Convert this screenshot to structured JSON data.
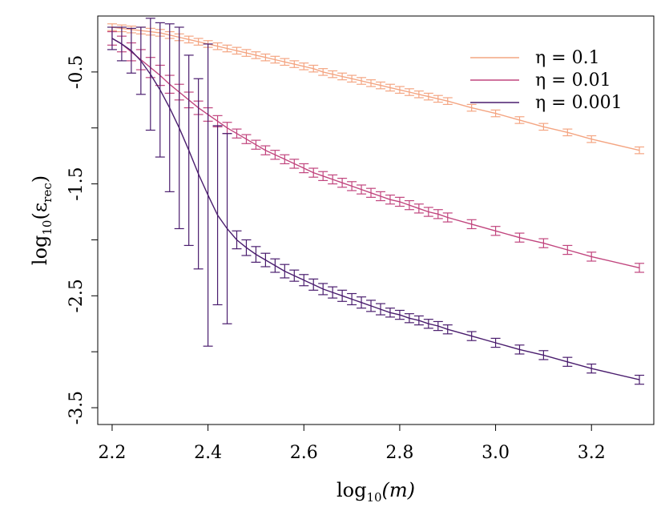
{
  "chart_data": {
    "type": "line",
    "title": "",
    "xlabel": {
      "base": "log",
      "sub": "10",
      "arg": "(m)"
    },
    "ylabel": {
      "base": "log",
      "sub": "10",
      "arg_open": "(ε",
      "arg_sub": "rec",
      "arg_close": ")"
    },
    "xlim": [
      2.17,
      3.33
    ],
    "ylim": [
      -3.65,
      0.0
    ],
    "x_ticks": [
      2.2,
      2.4,
      2.6,
      2.8,
      3.0,
      3.2
    ],
    "x_tick_labels": [
      "2.2",
      "2.4",
      "2.6",
      "2.8",
      "3.0",
      "3.2"
    ],
    "y_ticks": [
      -0.5,
      -1.5,
      -2.5,
      -3.5
    ],
    "y_tick_labels": [
      "-0.5",
      "-1.5",
      "-2.5",
      "-3.5"
    ],
    "y_minor_ticks": [
      -1.0,
      -2.0,
      -3.0
    ],
    "grid": false,
    "legend_position": "top-right",
    "series": [
      {
        "name": "η = 0.1",
        "color": "#f4a582",
        "x": [
          2.2,
          2.22,
          2.24,
          2.26,
          2.28,
          2.3,
          2.32,
          2.34,
          2.36,
          2.38,
          2.4,
          2.42,
          2.44,
          2.46,
          2.48,
          2.5,
          2.52,
          2.54,
          2.56,
          2.58,
          2.6,
          2.62,
          2.64,
          2.66,
          2.68,
          2.7,
          2.72,
          2.74,
          2.76,
          2.78,
          2.8,
          2.82,
          2.84,
          2.86,
          2.88,
          2.9,
          2.95,
          3.0,
          3.05,
          3.1,
          3.15,
          3.2,
          3.3
        ],
        "y": [
          -0.1,
          -0.11,
          -0.12,
          -0.13,
          -0.14,
          -0.15,
          -0.17,
          -0.19,
          -0.21,
          -0.23,
          -0.25,
          -0.27,
          -0.29,
          -0.31,
          -0.33,
          -0.35,
          -0.37,
          -0.39,
          -0.41,
          -0.43,
          -0.45,
          -0.47,
          -0.5,
          -0.52,
          -0.54,
          -0.56,
          -0.58,
          -0.6,
          -0.62,
          -0.64,
          -0.66,
          -0.68,
          -0.7,
          -0.72,
          -0.74,
          -0.76,
          -0.82,
          -0.87,
          -0.93,
          -0.99,
          -1.04,
          -1.1,
          -1.2
        ],
        "err": [
          0.03,
          0.03,
          0.03,
          0.03,
          0.03,
          0.03,
          0.03,
          0.03,
          0.03,
          0.03,
          0.03,
          0.03,
          0.03,
          0.03,
          0.03,
          0.03,
          0.03,
          0.03,
          0.03,
          0.03,
          0.03,
          0.03,
          0.03,
          0.03,
          0.03,
          0.03,
          0.03,
          0.03,
          0.03,
          0.03,
          0.03,
          0.03,
          0.03,
          0.03,
          0.03,
          0.03,
          0.03,
          0.03,
          0.03,
          0.03,
          0.03,
          0.03,
          0.03
        ]
      },
      {
        "name": "η = 0.01",
        "color": "#c1457e",
        "x": [
          2.2,
          2.22,
          2.24,
          2.26,
          2.28,
          2.3,
          2.32,
          2.34,
          2.36,
          2.38,
          2.4,
          2.42,
          2.44,
          2.46,
          2.48,
          2.5,
          2.52,
          2.54,
          2.56,
          2.58,
          2.6,
          2.62,
          2.64,
          2.66,
          2.68,
          2.7,
          2.72,
          2.74,
          2.76,
          2.78,
          2.8,
          2.82,
          2.84,
          2.86,
          2.88,
          2.9,
          2.95,
          3.0,
          3.05,
          3.1,
          3.15,
          3.2,
          3.3
        ],
        "y": [
          -0.2,
          -0.25,
          -0.32,
          -0.39,
          -0.46,
          -0.53,
          -0.61,
          -0.68,
          -0.75,
          -0.82,
          -0.88,
          -0.94,
          -1.0,
          -1.05,
          -1.1,
          -1.15,
          -1.2,
          -1.24,
          -1.28,
          -1.32,
          -1.36,
          -1.4,
          -1.43,
          -1.46,
          -1.49,
          -1.52,
          -1.55,
          -1.58,
          -1.61,
          -1.64,
          -1.66,
          -1.69,
          -1.72,
          -1.75,
          -1.77,
          -1.8,
          -1.86,
          -1.92,
          -1.98,
          -2.03,
          -2.09,
          -2.15,
          -2.25
        ],
        "err": [
          0.06,
          0.07,
          0.08,
          0.09,
          0.09,
          0.09,
          0.08,
          0.07,
          0.07,
          0.06,
          0.06,
          0.05,
          0.05,
          0.04,
          0.04,
          0.04,
          0.04,
          0.04,
          0.04,
          0.04,
          0.04,
          0.04,
          0.04,
          0.04,
          0.04,
          0.04,
          0.04,
          0.04,
          0.04,
          0.04,
          0.04,
          0.04,
          0.04,
          0.04,
          0.04,
          0.04,
          0.04,
          0.04,
          0.04,
          0.04,
          0.04,
          0.04,
          0.04
        ]
      },
      {
        "name": "η = 0.001",
        "color": "#4a1d6e",
        "x": [
          2.2,
          2.22,
          2.24,
          2.26,
          2.28,
          2.3,
          2.32,
          2.34,
          2.36,
          2.38,
          2.4,
          2.42,
          2.44,
          2.46,
          2.48,
          2.5,
          2.52,
          2.54,
          2.56,
          2.58,
          2.6,
          2.62,
          2.64,
          2.66,
          2.68,
          2.7,
          2.72,
          2.74,
          2.76,
          2.78,
          2.8,
          2.82,
          2.84,
          2.86,
          2.88,
          2.9,
          2.95,
          3.0,
          3.05,
          3.1,
          3.15,
          3.2,
          3.3
        ],
        "y": [
          -0.2,
          -0.25,
          -0.31,
          -0.4,
          -0.52,
          -0.66,
          -0.82,
          -1.0,
          -1.2,
          -1.41,
          -1.6,
          -1.78,
          -1.9,
          -2.0,
          -2.07,
          -2.13,
          -2.18,
          -2.23,
          -2.28,
          -2.32,
          -2.36,
          -2.4,
          -2.44,
          -2.47,
          -2.5,
          -2.53,
          -2.56,
          -2.59,
          -2.62,
          -2.65,
          -2.67,
          -2.7,
          -2.72,
          -2.75,
          -2.77,
          -2.8,
          -2.86,
          -2.92,
          -2.98,
          -3.03,
          -3.09,
          -3.15,
          -3.25
        ],
        "err": [
          0.1,
          0.15,
          0.2,
          0.3,
          0.5,
          0.6,
          0.75,
          0.9,
          0.85,
          0.85,
          1.35,
          0.8,
          0.85,
          0.08,
          0.07,
          0.07,
          0.06,
          0.06,
          0.06,
          0.05,
          0.05,
          0.05,
          0.05,
          0.05,
          0.05,
          0.05,
          0.05,
          0.05,
          0.05,
          0.04,
          0.04,
          0.04,
          0.04,
          0.04,
          0.04,
          0.04,
          0.04,
          0.04,
          0.04,
          0.04,
          0.04,
          0.04,
          0.04
        ]
      }
    ]
  }
}
